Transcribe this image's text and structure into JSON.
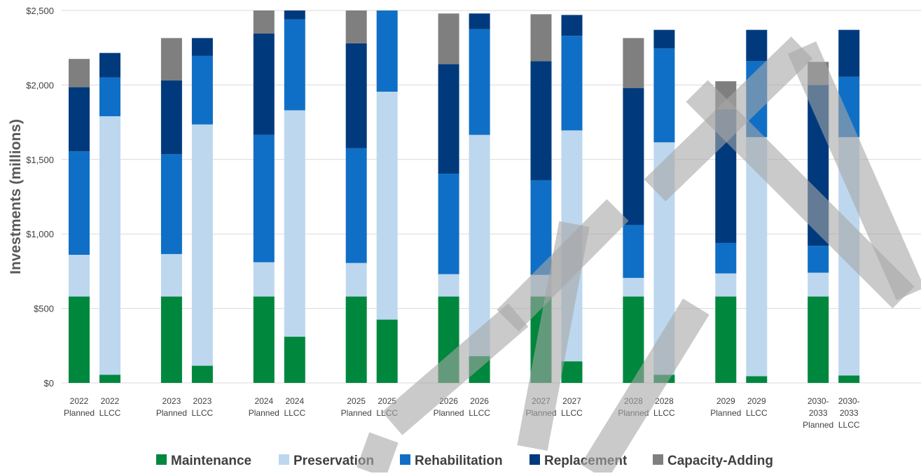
{
  "chart_data": {
    "type": "bar",
    "stacked": true,
    "title": "",
    "xlabel": "",
    "ylabel": "Investments (millions)",
    "ylim": [
      0,
      2500
    ],
    "yticks": [
      0,
      500,
      1000,
      1500,
      2000,
      2500
    ],
    "ytick_labels": [
      "$0",
      "$500",
      "$1,000",
      "$1,500",
      "$2,000",
      "$2,500"
    ],
    "grid": true,
    "legend_position": "bottom",
    "categories": [
      [
        "2022",
        "Planned"
      ],
      [
        "2022",
        "LLCC"
      ],
      [
        "2023",
        "Planned"
      ],
      [
        "2023",
        "LLCC"
      ],
      [
        "2024",
        "Planned"
      ],
      [
        "2024",
        "LLCC"
      ],
      [
        "2025",
        "Planned"
      ],
      [
        "2025",
        "LLCC"
      ],
      [
        "2026",
        "Planned"
      ],
      [
        "2026",
        "LLCC"
      ],
      [
        "2027",
        "Planned"
      ],
      [
        "2027",
        "LLCC"
      ],
      [
        "2028",
        "Planned"
      ],
      [
        "2028",
        "LLCC"
      ],
      [
        "2029",
        "Planned"
      ],
      [
        "2029",
        "LLCC"
      ],
      [
        "2030-",
        "2033",
        "Planned"
      ],
      [
        "2030-",
        "2033",
        "LLCC"
      ]
    ],
    "series": [
      {
        "name": "Maintenance",
        "color": "#00873E",
        "values": [
          580,
          55,
          580,
          115,
          580,
          310,
          580,
          425,
          580,
          180,
          580,
          145,
          580,
          55,
          580,
          45,
          580,
          50
        ]
      },
      {
        "name": "Preservation",
        "color": "#BDD7EE",
        "values": [
          280,
          1735,
          285,
          1620,
          230,
          1520,
          225,
          1530,
          150,
          1485,
          145,
          1550,
          125,
          1560,
          155,
          1605,
          160,
          1600
        ]
      },
      {
        "name": "Rehabilitation",
        "color": "#0F6FC6",
        "values": [
          695,
          260,
          670,
          460,
          855,
          610,
          770,
          545,
          675,
          710,
          635,
          635,
          355,
          630,
          205,
          510,
          180,
          405
        ]
      },
      {
        "name": "Replacement",
        "color": "#003A7D",
        "values": [
          430,
          165,
          495,
          120,
          680,
          60,
          705,
          0,
          735,
          105,
          800,
          140,
          920,
          125,
          895,
          210,
          1080,
          315
        ]
      },
      {
        "name": "Capacity-Adding",
        "color": "#7F7F7F",
        "values": [
          190,
          0,
          285,
          0,
          155,
          0,
          220,
          0,
          340,
          0,
          315,
          0,
          335,
          0,
          190,
          0,
          155,
          0
        ]
      }
    ]
  },
  "watermark": {
    "text": "SAMPLE",
    "color": "#A6A6A6"
  }
}
